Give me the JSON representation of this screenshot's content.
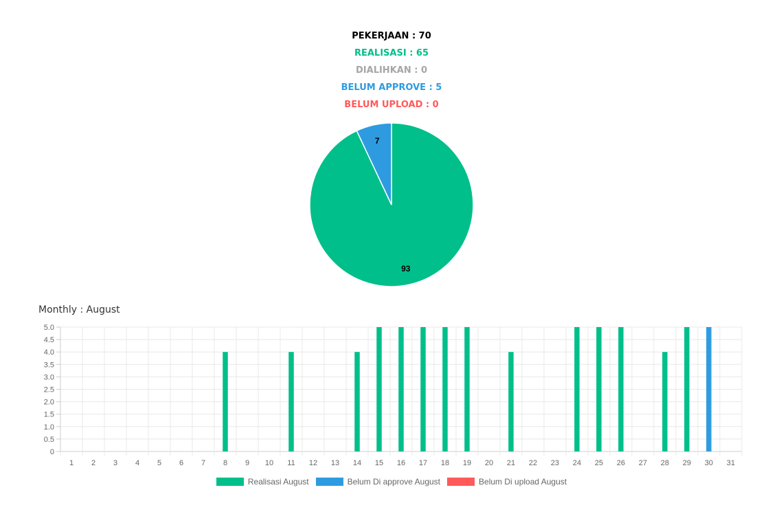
{
  "summary": {
    "pekerjaan": {
      "text": "PEKERJAAN : 70",
      "color": "#000000"
    },
    "realisasi": {
      "text": "REALISASI : 65",
      "color": "#00bf8a"
    },
    "dialihkan": {
      "text": "DIALIHKAN : 0",
      "color": "#a6a6a6"
    },
    "belum_approve": {
      "text": "BELUM APPROVE : 5",
      "color": "#2e9be0"
    },
    "belum_upload": {
      "text": "BELUM UPLOAD : 0",
      "color": "#ff5a5a"
    }
  },
  "monthly_title": "Monthly : August",
  "legend": [
    {
      "label": "Realisasi August",
      "color": "#00bf8a"
    },
    {
      "label": "Belum Di approve August",
      "color": "#2e9be0"
    },
    {
      "label": "Belum Di upload August",
      "color": "#ff5a5a"
    }
  ],
  "chart_data": [
    {
      "type": "pie",
      "slices": [
        {
          "name": "Realisasi",
          "value": 93,
          "label": "93",
          "color": "#00bf8a"
        },
        {
          "name": "Belum Approve",
          "value": 7,
          "label": "7",
          "color": "#2e9be0"
        }
      ]
    },
    {
      "type": "bar",
      "categories": [
        "1",
        "2",
        "3",
        "4",
        "5",
        "6",
        "7",
        "8",
        "9",
        "10",
        "11",
        "12",
        "13",
        "14",
        "15",
        "16",
        "17",
        "18",
        "19",
        "20",
        "21",
        "22",
        "23",
        "24",
        "25",
        "26",
        "27",
        "28",
        "29",
        "30",
        "31"
      ],
      "y_ticks": [
        "0",
        "0.5",
        "1.0",
        "1.5",
        "2.0",
        "2.5",
        "3.0",
        "3.5",
        "4.0",
        "4.5",
        "5.0"
      ],
      "ylim": [
        0,
        5
      ],
      "grid": true,
      "legend_position": "bottom",
      "series": [
        {
          "name": "Realisasi August",
          "color": "#00bf8a",
          "values": [
            0,
            0,
            0,
            0,
            0,
            0,
            0,
            4,
            0,
            0,
            4,
            0,
            0,
            4,
            5,
            5,
            5,
            5,
            5,
            0,
            4,
            0,
            0,
            5,
            5,
            5,
            0,
            4,
            5,
            0,
            0
          ]
        },
        {
          "name": "Belum Di approve August",
          "color": "#2e9be0",
          "values": [
            0,
            0,
            0,
            0,
            0,
            0,
            0,
            0,
            0,
            0,
            0,
            0,
            0,
            0,
            0,
            0,
            0,
            0,
            0,
            0,
            0,
            0,
            0,
            0,
            0,
            0,
            0,
            0,
            0,
            5,
            0
          ]
        },
        {
          "name": "Belum Di upload August",
          "color": "#ff5a5a",
          "values": [
            0,
            0,
            0,
            0,
            0,
            0,
            0,
            0,
            0,
            0,
            0,
            0,
            0,
            0,
            0,
            0,
            0,
            0,
            0,
            0,
            0,
            0,
            0,
            0,
            0,
            0,
            0,
            0,
            0,
            0,
            0
          ]
        }
      ]
    }
  ]
}
